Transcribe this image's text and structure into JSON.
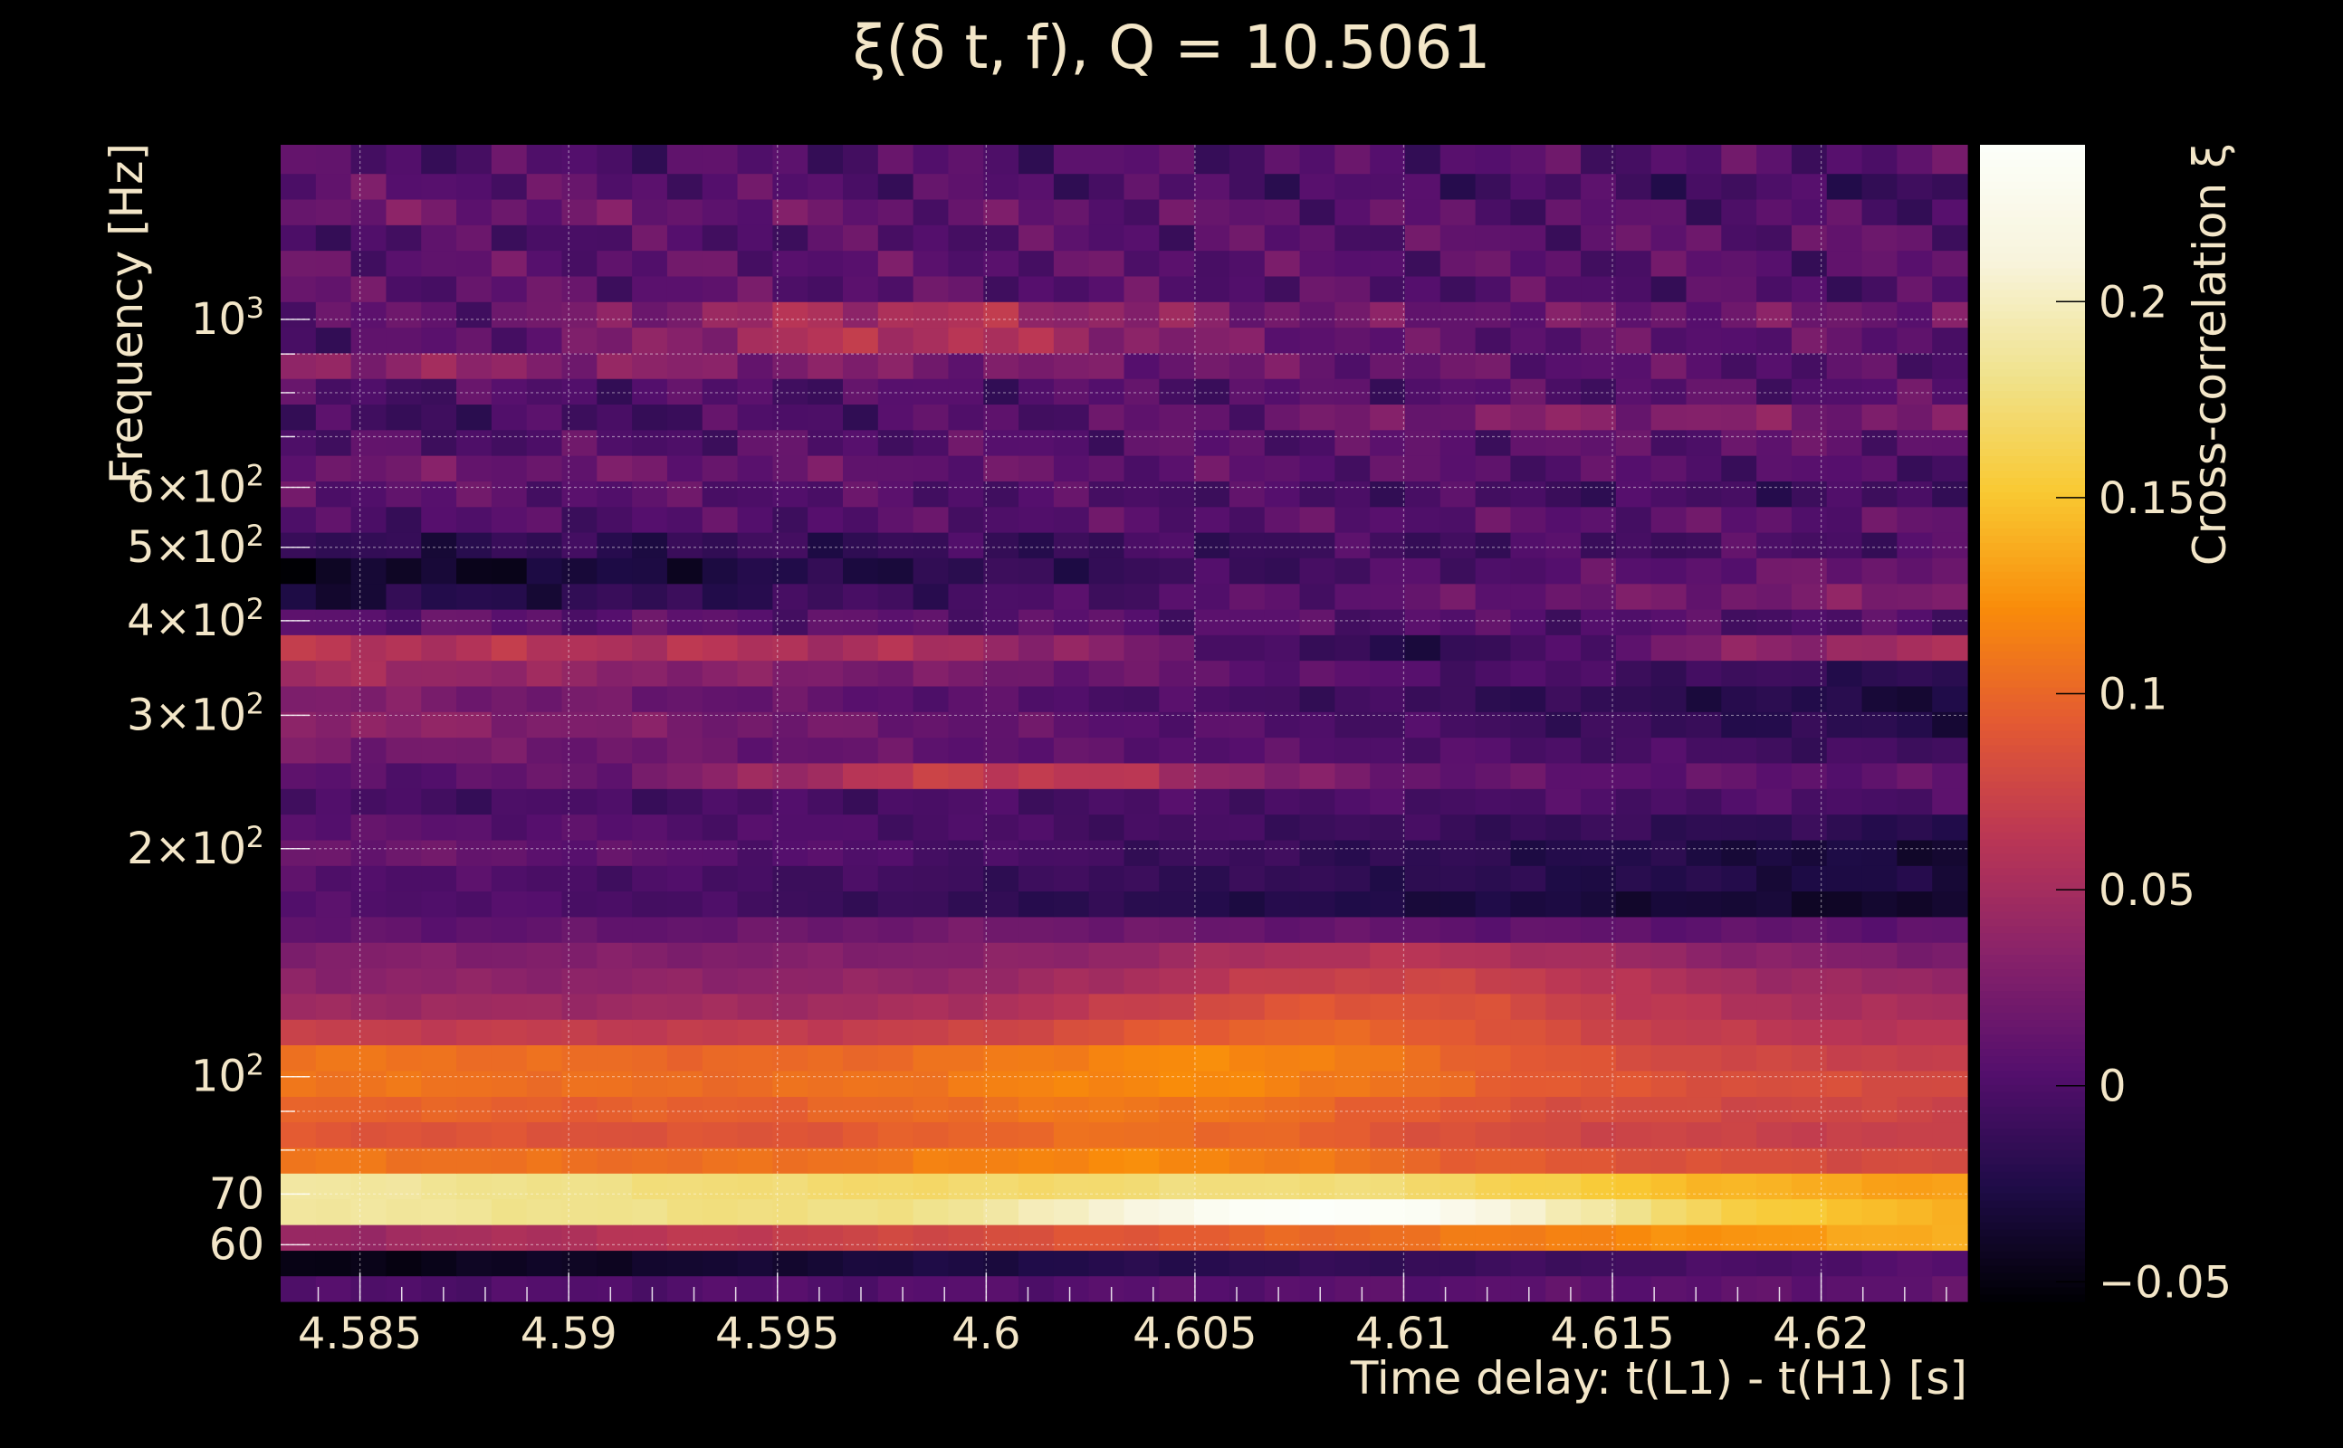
{
  "chart_data": {
    "type": "heatmap",
    "title": "ξ(δ t, f), Q = 10.5061",
    "xlabel": "Time delay: t(L1) - t(H1) [s]",
    "ylabel": "Frequency [Hz]",
    "colorbar_label": "Cross-correlation ξ",
    "xlim": [
      4.5831,
      4.6235
    ],
    "ylim": [
      50.5,
      1700
    ],
    "y_scale": "log",
    "x_ticks": [
      {
        "value": 4.585,
        "label": "4.585"
      },
      {
        "value": 4.59,
        "label": "4.59"
      },
      {
        "value": 4.595,
        "label": "4.595"
      },
      {
        "value": 4.6,
        "label": "4.6"
      },
      {
        "value": 4.605,
        "label": "4.605"
      },
      {
        "value": 4.61,
        "label": "4.61"
      },
      {
        "value": 4.615,
        "label": "4.615"
      },
      {
        "value": 4.62,
        "label": "4.62"
      }
    ],
    "y_ticks": [
      {
        "value": 60,
        "label": "60"
      },
      {
        "value": 70,
        "label": "70"
      },
      {
        "value": 100,
        "label": "10",
        "sup": "2"
      },
      {
        "value": 200,
        "label": "2×10",
        "sup": "2"
      },
      {
        "value": 300,
        "label": "3×10",
        "sup": "2"
      },
      {
        "value": 400,
        "label": "4×10",
        "sup": "2"
      },
      {
        "value": 500,
        "label": "5×10",
        "sup": "2"
      },
      {
        "value": 600,
        "label": "6×10",
        "sup": "2"
      },
      {
        "value": 1000,
        "label": "10",
        "sup": "3"
      }
    ],
    "colorbar": {
      "range": [
        -0.055,
        0.24
      ],
      "ticks": [
        {
          "value": -0.05,
          "label": "−0.05"
        },
        {
          "value": 0,
          "label": "0"
        },
        {
          "value": 0.05,
          "label": "0.05"
        },
        {
          "value": 0.1,
          "label": "0.1"
        },
        {
          "value": 0.15,
          "label": "0.15"
        },
        {
          "value": 0.2,
          "label": "0.2"
        }
      ],
      "colormap": "inferno"
    },
    "grid": true,
    "rows": [
      {
        "f_low": 50.5,
        "f_high": 54.6,
        "values": {
          "start": 0.0,
          "end": 0.01,
          "wobble": 0.006
        }
      },
      {
        "f_low": 54.6,
        "f_high": 59.0,
        "values": {
          "start": -0.05,
          "end": 0.005,
          "wobble": 0.004
        }
      },
      {
        "f_low": 59.0,
        "f_high": 63.8,
        "values": {
          "start": 0.04,
          "end": 0.14,
          "wobble": 0.004
        }
      },
      {
        "f_low": 63.8,
        "f_high": 69.0,
        "values": {
          "start": 0.19,
          "end": 0.14,
          "peak": 0.24,
          "peak_at": 4.6085,
          "wobble": 0.003
        }
      },
      {
        "f_low": 69.0,
        "f_high": 74.6,
        "values": {
          "start": 0.19,
          "end": 0.13,
          "peak": 0.175,
          "peak_at": 4.6085,
          "wobble": 0.003
        }
      },
      {
        "f_low": 74.6,
        "f_high": 80.6,
        "values": {
          "start": 0.11,
          "end": 0.08,
          "peak": 0.12,
          "peak_at": 4.604,
          "wobble": 0.004
        }
      },
      {
        "f_low": 80.6,
        "f_high": 87.2,
        "values": {
          "start": 0.09,
          "end": 0.07,
          "peak": 0.105,
          "peak_at": 4.604,
          "wobble": 0.004
        }
      },
      {
        "f_low": 87.2,
        "f_high": 94.2,
        "values": {
          "start": 0.1,
          "end": 0.075,
          "peak": 0.11,
          "peak_at": 4.604,
          "wobble": 0.004
        }
      },
      {
        "f_low": 94.2,
        "f_high": 101.9,
        "values": {
          "start": 0.11,
          "end": 0.08,
          "peak": 0.12,
          "peak_at": 4.605,
          "wobble": 0.004
        }
      },
      {
        "f_low": 101.9,
        "f_high": 110.2,
        "values": {
          "start": 0.11,
          "end": 0.07,
          "peak": 0.12,
          "peak_at": 4.606,
          "wobble": 0.004
        }
      },
      {
        "f_low": 110.2,
        "f_high": 119.1,
        "values": {
          "start": 0.07,
          "end": 0.06,
          "peak": 0.1,
          "peak_at": 4.608,
          "wobble": 0.004
        }
      },
      {
        "f_low": 119.1,
        "f_high": 128.8,
        "values": {
          "start": 0.045,
          "end": 0.05,
          "peak": 0.09,
          "peak_at": 4.609,
          "wobble": 0.005
        }
      },
      {
        "f_low": 128.8,
        "f_high": 139.2,
        "values": {
          "start": 0.035,
          "end": 0.04,
          "peak": 0.075,
          "peak_at": 4.61,
          "wobble": 0.005
        }
      },
      {
        "f_low": 139.2,
        "f_high": 150.5,
        "values": {
          "start": 0.03,
          "end": 0.025,
          "peak": 0.06,
          "peak_at": 4.61,
          "wobble": 0.005
        }
      },
      {
        "f_low": 150.5,
        "f_high": 162.7,
        "values": {
          "start": 0.01,
          "end": 0.01,
          "peak": 0.02,
          "peak_at": 4.6,
          "wobble": 0.006
        }
      },
      {
        "f_low": 162.7,
        "f_high": 175.9,
        "values": {
          "start": 0.0,
          "end": -0.04,
          "peak": 0.0,
          "peak_at": 4.59,
          "wobble": 0.006
        }
      },
      {
        "f_low": 175.9,
        "f_high": 190.1,
        "values": {
          "start": 0.005,
          "end": -0.03,
          "wobble": 0.008
        }
      },
      {
        "f_low": 190.1,
        "f_high": 205.5,
        "values": {
          "start": 0.02,
          "end": -0.035,
          "wobble": 0.008
        }
      },
      {
        "f_low": 205.5,
        "f_high": 222.2,
        "values": {
          "start": 0.01,
          "end": -0.02,
          "wobble": 0.008
        }
      },
      {
        "f_low": 222.2,
        "f_high": 240.2,
        "values": {
          "start": -0.005,
          "end": 0.0,
          "wobble": 0.01
        }
      },
      {
        "f_low": 240.2,
        "f_high": 259.7,
        "values": {
          "start": 0.005,
          "end": 0.01,
          "peak": 0.07,
          "peak_at": 4.6,
          "wobble": 0.01
        }
      },
      {
        "f_low": 259.7,
        "f_high": 280.7,
        "values": {
          "start": 0.025,
          "end": -0.01,
          "wobble": 0.01
        }
      },
      {
        "f_low": 280.7,
        "f_high": 303.5,
        "values": {
          "start": 0.04,
          "end": -0.025,
          "wobble": 0.01
        }
      },
      {
        "f_low": 303.5,
        "f_high": 328.1,
        "values": {
          "start": 0.03,
          "end": -0.03,
          "wobble": 0.01
        }
      },
      {
        "f_low": 328.1,
        "f_high": 354.7,
        "values": {
          "start": 0.05,
          "end": -0.02,
          "wobble": 0.01
        }
      },
      {
        "f_low": 354.7,
        "f_high": 383.4,
        "values": {
          "start": 0.06,
          "end": 0.05,
          "peak": -0.02,
          "peak_at": 4.61,
          "wobble": 0.012
        }
      },
      {
        "f_low": 383.4,
        "f_high": 414.4,
        "values": {
          "start": 0.01,
          "end": 0.0,
          "wobble": 0.014
        }
      },
      {
        "f_low": 414.4,
        "f_high": 448.0,
        "values": {
          "start": -0.03,
          "end": 0.03,
          "wobble": 0.014
        }
      },
      {
        "f_low": 448.0,
        "f_high": 484.4,
        "values": {
          "start": -0.045,
          "end": 0.02,
          "wobble": 0.014
        }
      },
      {
        "f_low": 484.4,
        "f_high": 523.6,
        "values": {
          "start": -0.02,
          "end": 0.0,
          "wobble": 0.016
        }
      },
      {
        "f_low": 523.6,
        "f_high": 566.0,
        "values": {
          "start": 0.0,
          "end": 0.01,
          "wobble": 0.016
        }
      },
      {
        "f_low": 566.0,
        "f_high": 611.9,
        "values": {
          "start": 0.01,
          "end": -0.01,
          "wobble": 0.016
        }
      },
      {
        "f_low": 611.9,
        "f_high": 661.5,
        "values": {
          "start": 0.02,
          "end": 0.0,
          "wobble": 0.016
        }
      },
      {
        "f_low": 661.5,
        "f_high": 715.1,
        "values": {
          "start": 0.0,
          "end": 0.01,
          "wobble": 0.018
        }
      },
      {
        "f_low": 715.1,
        "f_high": 773.0,
        "values": {
          "start": -0.01,
          "end": 0.02,
          "peak": 0.03,
          "peak_at": 4.614,
          "wobble": 0.018
        }
      },
      {
        "f_low": 773.0,
        "f_high": 835.6,
        "values": {
          "start": 0.0,
          "end": 0.005,
          "wobble": 0.018
        }
      },
      {
        "f_low": 835.6,
        "f_high": 903.3,
        "values": {
          "start": 0.04,
          "end": 0.0,
          "wobble": 0.018
        }
      },
      {
        "f_low": 903.3,
        "f_high": 976.5,
        "values": {
          "start": 0.0,
          "end": 0.01,
          "peak": 0.06,
          "peak_at": 4.598,
          "wobble": 0.018
        }
      },
      {
        "f_low": 976.5,
        "f_high": 1055.6,
        "values": {
          "start": 0.005,
          "end": 0.02,
          "peak": 0.055,
          "peak_at": 4.598,
          "wobble": 0.02
        }
      },
      {
        "f_low": 1055.6,
        "f_high": 1141.1,
        "values": {
          "start": 0.01,
          "end": 0.0,
          "wobble": 0.02
        }
      },
      {
        "f_low": 1141.1,
        "f_high": 1233.6,
        "values": {
          "start": 0.01,
          "end": 0.005,
          "wobble": 0.02
        }
      },
      {
        "f_low": 1233.6,
        "f_high": 1333.5,
        "values": {
          "start": 0.0,
          "end": 0.01,
          "wobble": 0.02
        }
      },
      {
        "f_low": 1333.5,
        "f_high": 1441.6,
        "values": {
          "start": 0.02,
          "end": 0.0,
          "wobble": 0.02
        }
      },
      {
        "f_low": 1441.6,
        "f_high": 1558.4,
        "values": {
          "start": 0.01,
          "end": -0.01,
          "wobble": 0.02
        }
      },
      {
        "f_low": 1558.4,
        "f_high": 1700,
        "values": {
          "start": 0.0,
          "end": 0.005,
          "wobble": 0.02
        }
      }
    ],
    "n_columns": 48
  }
}
